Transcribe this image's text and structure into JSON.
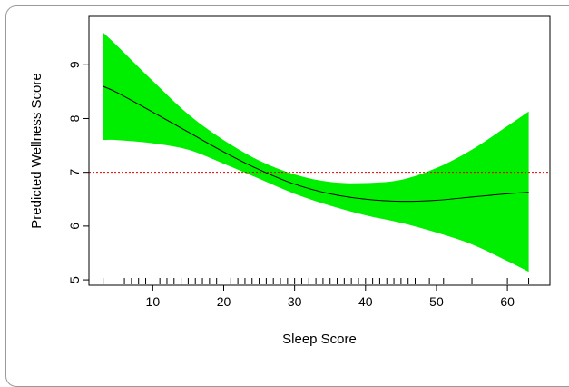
{
  "chart_data": {
    "type": "line",
    "xlabel": "Sleep Score",
    "ylabel": "Predicted Wellness Score",
    "xlim": [
      1,
      66
    ],
    "ylim": [
      4.9,
      9.9
    ],
    "x_ticks": [
      "10",
      "20",
      "30",
      "40",
      "50",
      "60"
    ],
    "x_tick_values": [
      10,
      20,
      30,
      40,
      50,
      60
    ],
    "y_ticks": [
      "5",
      "6",
      "7",
      "8",
      "9"
    ],
    "y_tick_values": [
      5,
      6,
      7,
      8,
      9
    ],
    "reference_line": {
      "y": 7,
      "color": "#dd0000",
      "style": "dotted"
    },
    "band_color": "#00ee00",
    "line_color": "#000000",
    "series": [
      {
        "x": [
          3,
          5,
          10,
          15,
          20,
          25,
          30,
          35,
          40,
          45,
          50,
          55,
          60,
          63
        ],
        "fit": [
          8.6,
          8.48,
          8.12,
          7.75,
          7.38,
          7.05,
          6.78,
          6.6,
          6.5,
          6.46,
          6.48,
          6.54,
          6.6,
          6.63
        ],
        "upper": [
          9.6,
          9.35,
          8.7,
          8.08,
          7.6,
          7.22,
          6.96,
          6.82,
          6.8,
          6.86,
          7.08,
          7.42,
          7.86,
          8.13
        ],
        "lower": [
          7.6,
          7.6,
          7.54,
          7.42,
          7.16,
          6.88,
          6.6,
          6.38,
          6.2,
          6.06,
          5.88,
          5.66,
          5.35,
          5.15
        ]
      }
    ],
    "rug_x": [
      3,
      6,
      7,
      8,
      9,
      11,
      12,
      13,
      14,
      15,
      16,
      17,
      18,
      19,
      21,
      22,
      23,
      24,
      25,
      26,
      27,
      28,
      29,
      30,
      31,
      32,
      33,
      34,
      35,
      36,
      37,
      38,
      39,
      40,
      41,
      42,
      43,
      44,
      45,
      46,
      47,
      49,
      51,
      55,
      60,
      63
    ]
  }
}
